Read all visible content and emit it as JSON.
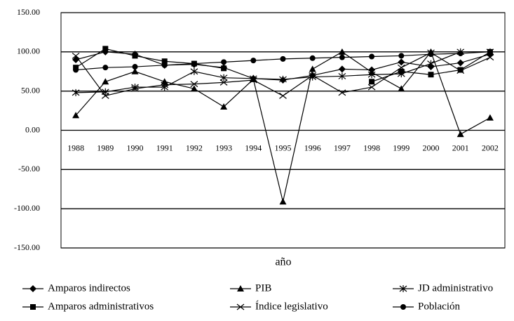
{
  "chart_data": {
    "type": "line",
    "x_label": "año",
    "categories": [
      "1988",
      "1989",
      "1990",
      "1991",
      "1992",
      "1993",
      "1994",
      "1995",
      "1996",
      "1997",
      "1998",
      "1999",
      "2000",
      "2001",
      "2002"
    ],
    "ylim": [
      -150,
      150
    ],
    "yticks": [
      {
        "value": -150,
        "label": "-150.00"
      },
      {
        "value": -100,
        "label": "-100.00"
      },
      {
        "value": -50,
        "label": "-50.00"
      },
      {
        "value": 0,
        "label": "0.00"
      },
      {
        "value": 50,
        "label": "50.00"
      },
      {
        "value": 100,
        "label": "100.00"
      },
      {
        "value": 150,
        "label": "150.00"
      }
    ],
    "grid": true,
    "legend": "bottom",
    "series": [
      {
        "name": "Amparos indirectos",
        "color": "#000000",
        "marker": "diamond",
        "values": [
          90,
          100,
          97,
          83,
          84,
          80,
          66,
          64,
          70,
          78,
          77,
          87,
          81,
          86,
          97
        ]
      },
      {
        "name": "PIB",
        "color": "#000000",
        "marker": "triangle",
        "values": [
          19,
          62,
          75,
          62,
          53,
          30,
          65,
          -91,
          78,
          100,
          74,
          53,
          100,
          -5,
          16
        ]
      },
      {
        "name": "JD administrativo",
        "color": "#000000",
        "marker": "star",
        "values": [
          48,
          49,
          55,
          55,
          75,
          67,
          66,
          65,
          68,
          69,
          71,
          72,
          85,
          100,
          100
        ]
      },
      {
        "name": "Amparos administrativos",
        "color": "#000000",
        "marker": "square",
        "values": [
          80,
          104,
          95,
          88,
          85,
          79,
          null,
          null,
          null,
          null,
          62,
          75,
          71,
          77,
          100
        ]
      },
      {
        "name": "Índice legislativo",
        "color": "#000000",
        "marker": "x",
        "values": [
          95,
          44,
          53,
          58,
          59,
          61,
          64,
          44,
          70,
          48,
          55,
          80,
          99,
          76,
          93
        ]
      },
      {
        "name": "Población",
        "color": "#000000",
        "marker": "circle",
        "values": [
          77,
          80,
          81,
          83,
          85,
          87,
          89,
          91,
          92,
          93,
          94,
          95,
          97,
          98,
          100
        ]
      }
    ]
  }
}
